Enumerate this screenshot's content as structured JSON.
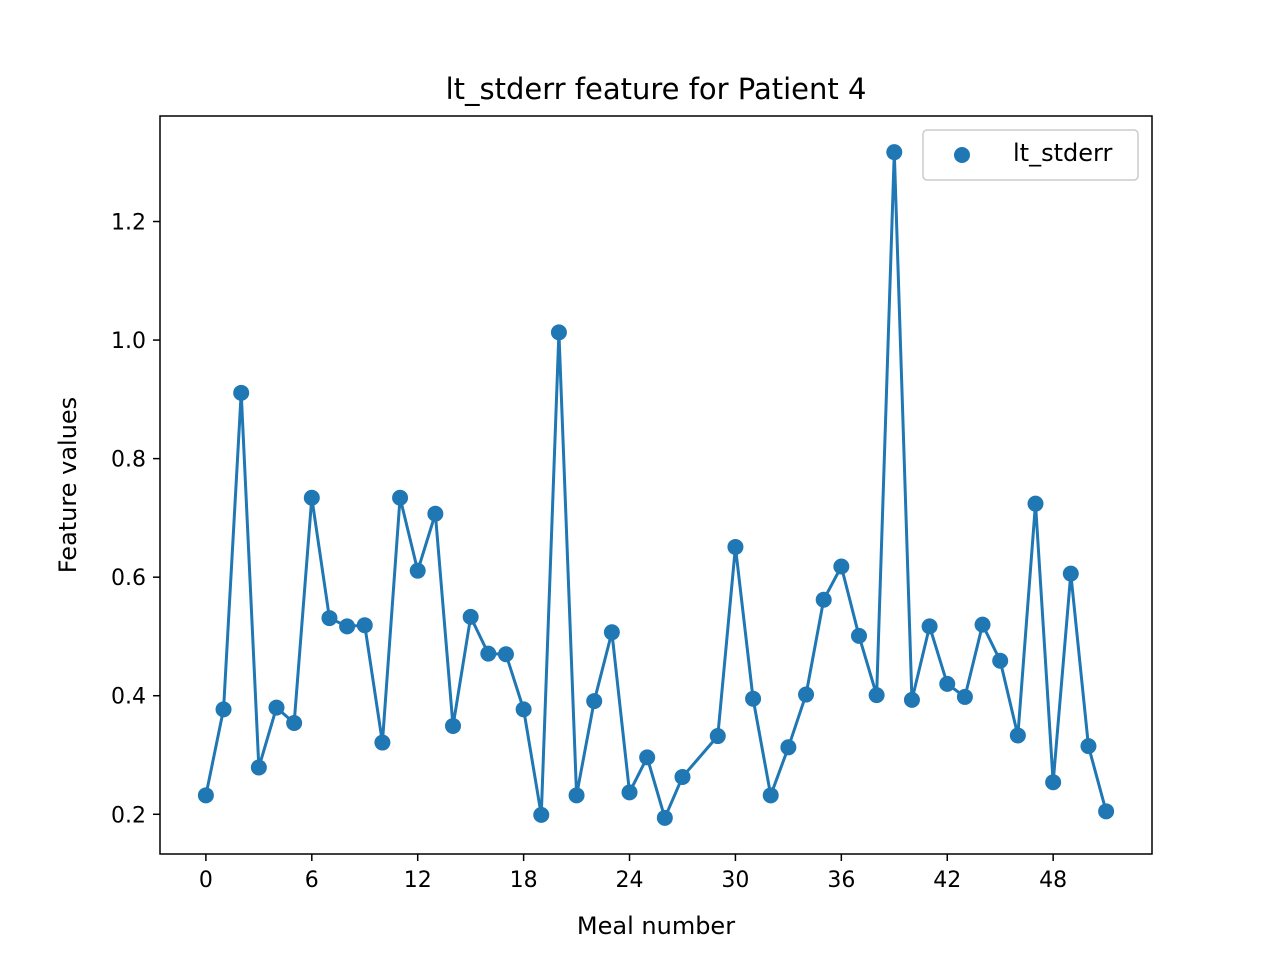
{
  "chart_data": {
    "type": "line",
    "title": "lt_stderr feature for Patient 4",
    "xlabel": "Meal number",
    "ylabel": "Feature values",
    "xlim": [
      -2.6,
      53.6
    ],
    "ylim": [
      0.133,
      1.378
    ],
    "x_ticks": [
      0,
      6,
      12,
      18,
      24,
      30,
      36,
      42,
      48
    ],
    "y_ticks": [
      0.2,
      0.4,
      0.6,
      0.8,
      1.0,
      1.2
    ],
    "y_tick_labels": [
      "0.2",
      "0.4",
      "0.6",
      "0.8",
      "1.0",
      "1.2"
    ],
    "grid": false,
    "legend": {
      "position": "upper right",
      "entries": [
        "lt_stderr"
      ]
    },
    "series": [
      {
        "name": "lt_stderr",
        "color": "#1f77b4",
        "x": [
          0,
          1,
          2,
          3,
          4,
          5,
          6,
          7,
          8,
          9,
          10,
          11,
          12,
          13,
          14,
          15,
          16,
          17,
          18,
          19,
          20,
          21,
          22,
          23,
          24,
          25,
          26,
          27,
          29,
          30,
          31,
          32,
          33,
          34,
          35,
          36,
          37,
          38,
          39,
          40,
          41,
          42,
          43,
          44,
          45,
          46,
          47,
          48,
          49,
          50,
          51
        ],
        "values": [
          0.232,
          0.377,
          0.911,
          0.279,
          0.38,
          0.354,
          0.734,
          0.531,
          0.517,
          0.519,
          0.321,
          0.734,
          0.611,
          0.707,
          0.349,
          0.533,
          0.471,
          0.47,
          0.377,
          0.199,
          1.013,
          0.232,
          0.391,
          0.507,
          0.237,
          0.296,
          0.194,
          0.263,
          0.332,
          0.651,
          0.395,
          0.232,
          0.313,
          0.402,
          0.562,
          0.618,
          0.501,
          0.401,
          1.317,
          0.393,
          0.517,
          0.42,
          0.398,
          0.52,
          0.459,
          0.333,
          0.724,
          0.254,
          0.606,
          0.315,
          0.205
        ]
      }
    ]
  }
}
